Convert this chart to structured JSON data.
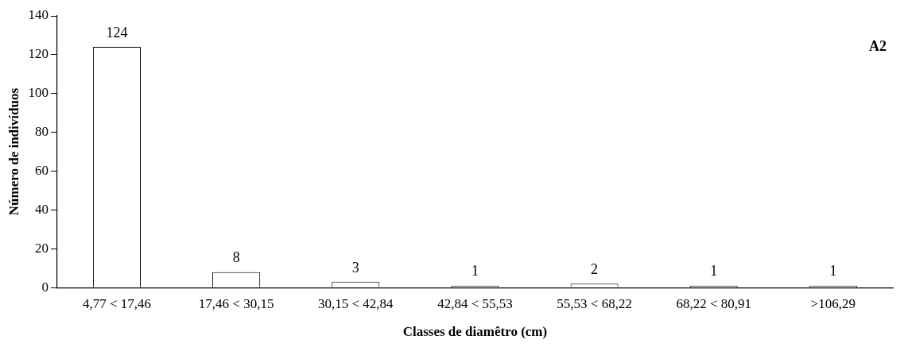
{
  "chart_data": {
    "type": "bar",
    "xlabel": "Classes de diamêtro (cm)",
    "ylabel": "Número de indivíduos",
    "categories": [
      "4,77 < 17,46",
      "17,46 < 30,15",
      "30,15 < 42,84",
      "42,84 < 55,53",
      "55,53 < 68,22",
      "68,22 < 80,91",
      ">106,29"
    ],
    "values": [
      124,
      8,
      3,
      1,
      2,
      1,
      1
    ],
    "color": "#ffffff",
    "ylim": [
      0,
      140
    ],
    "yticks": [
      0,
      20,
      40,
      60,
      80,
      100,
      120,
      140
    ],
    "grid": false,
    "legend": false,
    "data_labels": true,
    "annotations": [
      "A2"
    ]
  }
}
